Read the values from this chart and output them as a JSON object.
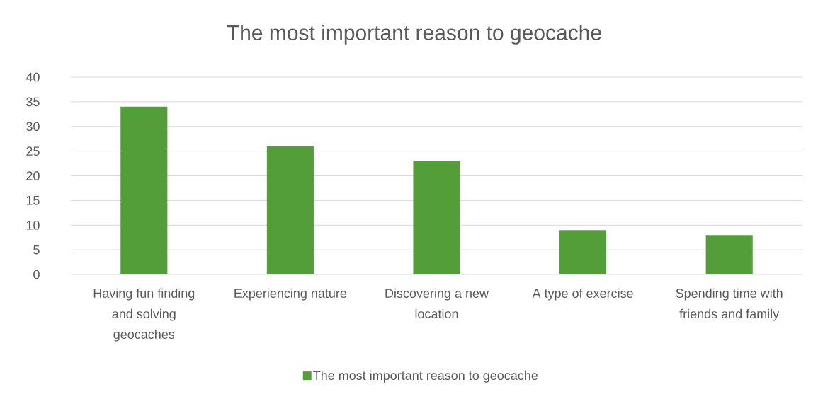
{
  "chart_data": {
    "type": "bar",
    "title": "The most important reason to geocache",
    "categories": [
      "Having fun finding and solving geocaches",
      "Experiencing nature",
      "Discovering a new location",
      "A type of exercise",
      "Spending time with friends and family"
    ],
    "series": [
      {
        "name": "The most important reason to geocache",
        "color": "#549e39",
        "values": [
          34,
          26,
          23,
          9,
          8
        ]
      }
    ],
    "ylim": [
      0,
      40
    ],
    "yticks": [
      0,
      5,
      10,
      15,
      20,
      25,
      30,
      35,
      40
    ],
    "grid": "y",
    "legend": "bottom"
  }
}
